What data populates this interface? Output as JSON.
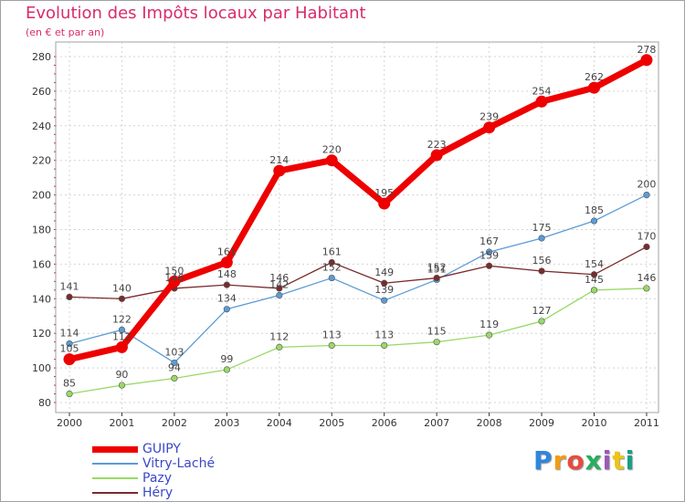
{
  "chart_data": {
    "type": "line",
    "title": "Evolution des Impôts locaux par Habitant",
    "subtitle": "(en € et par an)",
    "xlabel": "",
    "ylabel": "",
    "x": [
      "2000",
      "2001",
      "2002",
      "2003",
      "2004",
      "2005",
      "2006",
      "2007",
      "2008",
      "2009",
      "2010",
      "2011"
    ],
    "ylim": [
      80,
      280
    ],
    "yticks": [
      80,
      100,
      120,
      140,
      160,
      180,
      200,
      220,
      240,
      260,
      280
    ],
    "grid": true,
    "legend_position": "bottom-left",
    "series": [
      {
        "name": "GUIPY",
        "color": "#ee0000",
        "weight": "heavy",
        "values": [
          105,
          112,
          150,
          161,
          214,
          220,
          195,
          223,
          239,
          254,
          262,
          278
        ]
      },
      {
        "name": "Vitry-Laché",
        "color": "#5b9bd5",
        "weight": "thin",
        "values": [
          114,
          122,
          103,
          134,
          142,
          152,
          139,
          151,
          167,
          175,
          185,
          200
        ]
      },
      {
        "name": "Pazy",
        "color": "#99d966",
        "weight": "thin",
        "values": [
          85,
          90,
          94,
          99,
          112,
          113,
          113,
          115,
          119,
          127,
          145,
          146
        ]
      },
      {
        "name": "Héry",
        "color": "#7a2b2b",
        "weight": "thin",
        "values": [
          141,
          140,
          146,
          148,
          146,
          161,
          149,
          152,
          159,
          156,
          154,
          170
        ]
      }
    ]
  },
  "logo": {
    "text": "Proxiti",
    "letter_colors": [
      "#2e86de",
      "#f39c12",
      "#e74c3c",
      "#27ae60",
      "#9b59b6",
      "#f1c40f",
      "#16a085"
    ]
  }
}
